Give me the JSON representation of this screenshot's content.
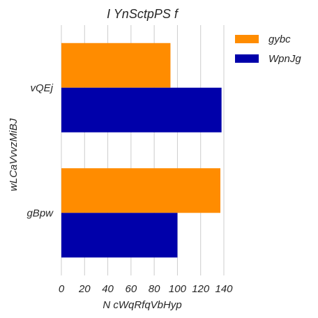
{
  "chart_data": {
    "type": "bar",
    "orientation": "horizontal",
    "title": "I YnSctpPS f",
    "xlabel": "N cWqRfqVbHyp",
    "ylabel": "wLCaVvvzMiBJ",
    "categories": [
      "vQEj",
      "gBpw"
    ],
    "series": [
      {
        "name": "gybc",
        "color": "#ff8c00",
        "values": [
          94,
          137
        ]
      },
      {
        "name": "WpnJg",
        "color": "#0000aa",
        "values": [
          138,
          100
        ]
      }
    ],
    "xlim": [
      0,
      140
    ],
    "xticks": [
      0,
      20,
      40,
      60,
      80,
      100,
      120,
      140
    ],
    "xtick_labels": [
      "0",
      "20",
      "40",
      "60",
      "80",
      "100",
      "120",
      "140"
    ],
    "grid": true,
    "legend_position": "outside-top-right"
  }
}
